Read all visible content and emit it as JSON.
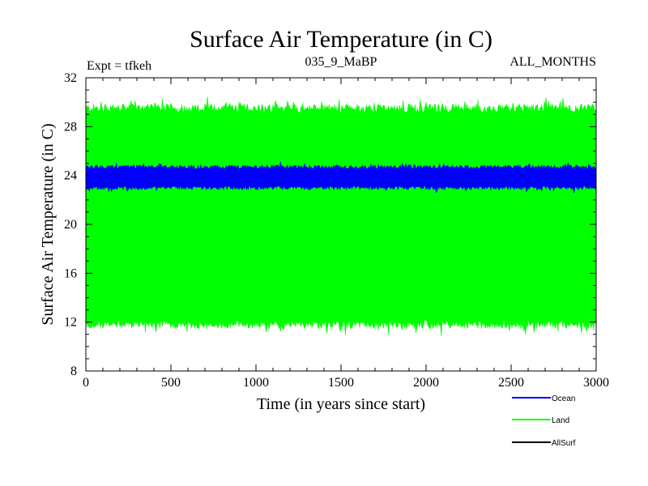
{
  "chart_data": {
    "type": "line",
    "title": "Surface Air Temperature (in C)",
    "subtitle_left": "Expt = tfkeh",
    "subtitle_center": "035_9_MaBP",
    "subtitle_right": "ALL_MONTHS",
    "xlabel": "Time (in years since start)",
    "ylabel": "Surface Air Temperature (in C)",
    "xlim": [
      0,
      3000
    ],
    "ylim": [
      8,
      32
    ],
    "x_ticks": [
      0,
      500,
      1000,
      1500,
      2000,
      2500,
      3000
    ],
    "y_ticks": [
      8,
      12,
      16,
      20,
      24,
      28,
      32
    ],
    "x_tick_labels": [
      "0",
      "500",
      "1000",
      "1500",
      "2000",
      "2500",
      "3000"
    ],
    "y_tick_labels": [
      "8",
      "12",
      "16",
      "20",
      "24",
      "28",
      "32"
    ],
    "grid": false,
    "legend_position": "bottom-right",
    "series": [
      {
        "name": "Ocean",
        "color": "#0000ff",
        "band_low": 23.0,
        "band_high": 24.7
      },
      {
        "name": "Land",
        "color": "#00ff00",
        "band_low": 11.8,
        "band_high": 29.5
      },
      {
        "name": "AllSurf",
        "color": "#000000"
      }
    ]
  }
}
